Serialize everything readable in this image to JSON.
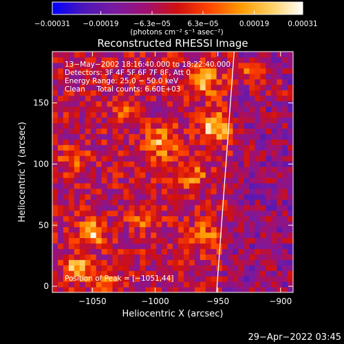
{
  "chart_data": {
    "type": "heatmap",
    "title": "Reconstructed RHESSI Image",
    "xlabel": "Heliocentric X (arcsec)",
    "ylabel": "Heliocentric Y (arcsec)",
    "xlim": [
      -1082,
      -890
    ],
    "ylim": [
      -5,
      192
    ],
    "x_ticks": [
      {
        "value": -1050,
        "label": "−1050"
      },
      {
        "value": -1000,
        "label": "−1000"
      },
      {
        "value": -950,
        "label": "−950"
      },
      {
        "value": -900,
        "label": "−900"
      }
    ],
    "y_ticks": [
      {
        "value": 0,
        "label": "0"
      },
      {
        "value": 50,
        "label": "50"
      },
      {
        "value": 100,
        "label": "100"
      },
      {
        "value": 150,
        "label": "150"
      }
    ],
    "colorbar": {
      "min": -0.00031,
      "max": 0.00031,
      "colors": [
        "#0000ff",
        "#4c17b8",
        "#7a1aa0",
        "#a01070",
        "#d01010",
        "#ff4400",
        "#ff9900",
        "#ffd060",
        "#ffffff"
      ],
      "ticks": [
        {
          "value": -0.00031,
          "label": "−0.00031"
        },
        {
          "value": -0.00019,
          "label": "−0.00019"
        },
        {
          "value": -6.3e-05,
          "label": "−6.3e−05"
        },
        {
          "value": 6.3e-05,
          "label": "6.3e−05"
        },
        {
          "value": 0.00019,
          "label": "0.00019"
        },
        {
          "value": 0.00031,
          "label": "0.00031"
        }
      ],
      "unit_label": "(photons cm⁻² s⁻¹ asec⁻²)"
    },
    "sources": [
      {
        "x": -1051,
        "y": 44,
        "sigma": 7,
        "amp": 0.00029
      },
      {
        "x": -1062,
        "y": 15,
        "sigma": 7,
        "amp": 0.00024
      },
      {
        "x": -1040,
        "y": 5,
        "sigma": 6,
        "amp": 0.00018
      },
      {
        "x": -953,
        "y": 130,
        "sigma": 8,
        "amp": 0.00027
      },
      {
        "x": -962,
        "y": 168,
        "sigma": 9,
        "amp": 0.00022
      },
      {
        "x": -995,
        "y": 118,
        "sigma": 9,
        "amp": 0.00021
      },
      {
        "x": -970,
        "y": 90,
        "sigma": 7,
        "amp": 0.00018
      },
      {
        "x": -960,
        "y": 40,
        "sigma": 8,
        "amp": 0.00017
      },
      {
        "x": -1010,
        "y": 55,
        "sigma": 7,
        "amp": 0.00014
      },
      {
        "x": -1065,
        "y": 105,
        "sigma": 8,
        "amp": 0.00012
      },
      {
        "x": -925,
        "y": 175,
        "sigma": 8,
        "amp": 0.00016
      },
      {
        "x": -905,
        "y": 160,
        "sigma": 6,
        "amp": 0.00012
      },
      {
        "x": -1025,
        "y": 145,
        "sigma": 6,
        "amp": 0.00011
      },
      {
        "x": -925,
        "y": 110,
        "sigma": 5,
        "amp": 0.00011
      }
    ],
    "limb_line": [
      [
        -951,
        -5
      ],
      [
        -937,
        192
      ]
    ],
    "annotations": {
      "line1": "13−May−2002 18:16:40.000 to 18:22:40.000",
      "line2": "Detectors: 3F 4F 5F 6F 7F 8F, Att 0",
      "line3": "Energy Range: 25.0 − 50.0 keV",
      "line4": "Clean     Total counts: 6.60E+03",
      "peak": "Position of Peak = [−1051,44]"
    }
  },
  "timestamp": "29−Apr−2022 03:45"
}
